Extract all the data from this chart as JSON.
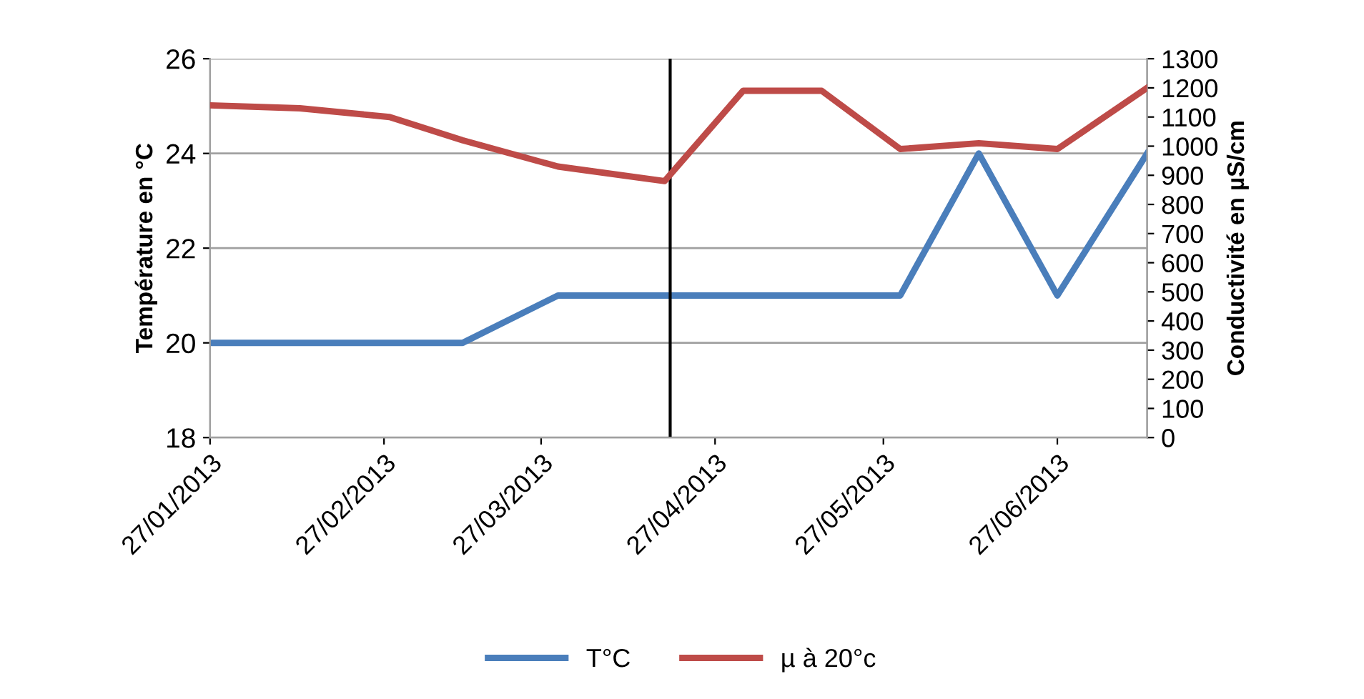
{
  "chart_data": {
    "type": "line",
    "ylabel": "Température en °C",
    "y2label": "Conductivité en µS/cm",
    "x": [
      "2013-01-27",
      "2013-02-12",
      "2013-02-28",
      "2013-03-13",
      "2013-03-30",
      "2013-04-18",
      "2013-05-02",
      "2013-05-16",
      "2013-05-30",
      "2013-06-13",
      "2013-06-27",
      "2013-07-13"
    ],
    "series": [
      {
        "name": "T°C",
        "color": "#4a7ebb",
        "values": [
          20,
          20,
          20,
          20,
          21,
          21,
          21,
          21,
          21,
          24,
          21,
          24
        ]
      },
      {
        "name": "µ à 20°c",
        "color": "#be4b48",
        "axis": "y2",
        "values": [
          1140,
          1130,
          1100,
          1020,
          930,
          880,
          1190,
          1190,
          990,
          1010,
          990,
          1200
        ]
      }
    ],
    "xlim": [
      "2013-01-27",
      "2013-07-13"
    ],
    "xticks": [
      {
        "value": "2013-01-27",
        "label": "27/01/2013"
      },
      {
        "value": "2013-02-27",
        "label": "27/02/2013"
      },
      {
        "value": "2013-03-27",
        "label": "27/03/2013"
      },
      {
        "value": "2013-04-27",
        "label": "27/04/2013"
      },
      {
        "value": "2013-05-27",
        "label": "27/05/2013"
      },
      {
        "value": "2013-06-27",
        "label": "27/06/2013"
      }
    ],
    "ylim": [
      18,
      26
    ],
    "yticks": [
      18,
      20,
      22,
      24,
      26
    ],
    "y2lim": [
      0,
      1300
    ],
    "y2ticks": [
      0,
      100,
      200,
      300,
      400,
      500,
      600,
      700,
      800,
      900,
      1000,
      1100,
      1200,
      1300
    ],
    "ref_lines": [
      {
        "axis": "x",
        "value": "2013-04-19",
        "color": "#000000"
      }
    ],
    "grid": "y",
    "legend": "bottom",
    "marker": "none",
    "line_style": "solid"
  }
}
